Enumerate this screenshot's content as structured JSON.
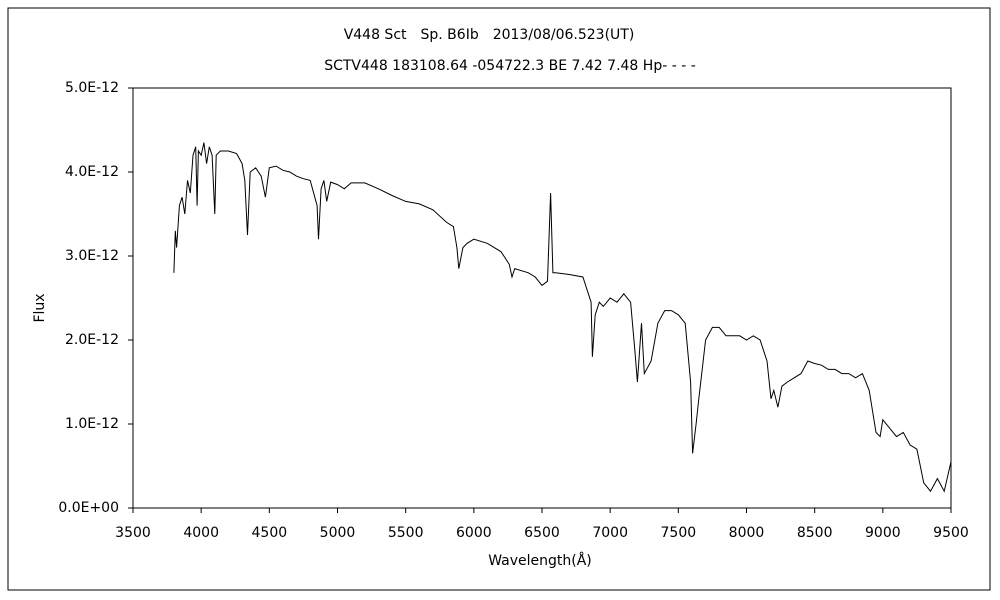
{
  "chart_data": {
    "type": "line",
    "title": "V448 Sct　Sp. B6Ib　2013/08/06.523(UT)",
    "subtitle": "SCTV448 183108.64 -054722.3 BE 7.42 7.48 Hp- - - -",
    "x_label": "Wavelength(Å)",
    "y_label": "Flux",
    "color": "#000000",
    "x": [
      3800,
      3810,
      3820,
      3840,
      3860,
      3880,
      3900,
      3920,
      3940,
      3960,
      3970,
      3980,
      4000,
      4020,
      4040,
      4060,
      4080,
      4100,
      4110,
      4140,
      4200,
      4260,
      4300,
      4320,
      4340,
      4360,
      4400,
      4440,
      4471,
      4500,
      4550,
      4600,
      4650,
      4700,
      4750,
      4800,
      4850,
      4861,
      4880,
      4900,
      4921,
      4950,
      5000,
      5050,
      5100,
      5200,
      5300,
      5400,
      5500,
      5600,
      5700,
      5800,
      5850,
      5876,
      5890,
      5920,
      5950,
      6000,
      6100,
      6200,
      6260,
      6280,
      6300,
      6400,
      6450,
      6500,
      6540,
      6563,
      6580,
      6600,
      6700,
      6800,
      6860,
      6870,
      6890,
      6920,
      6950,
      7000,
      7050,
      7100,
      7150,
      7180,
      7200,
      7230,
      7250,
      7300,
      7350,
      7400,
      7450,
      7500,
      7550,
      7590,
      7605,
      7630,
      7650,
      7700,
      7750,
      7800,
      7850,
      7900,
      7950,
      8000,
      8050,
      8100,
      8150,
      8180,
      8200,
      8230,
      8260,
      8300,
      8350,
      8400,
      8450,
      8500,
      8550,
      8600,
      8650,
      8700,
      8750,
      8800,
      8850,
      8900,
      8950,
      8980,
      9000,
      9050,
      9100,
      9150,
      9200,
      9250,
      9300,
      9350,
      9400,
      9450,
      9500
    ],
    "values": [
      2.8e-12,
      3.3e-12,
      3.1e-12,
      3.6e-12,
      3.7e-12,
      3.5e-12,
      3.9e-12,
      3.75e-12,
      4.2e-12,
      4.3e-12,
      3.6e-12,
      4.25e-12,
      4.2e-12,
      4.35e-12,
      4.1e-12,
      4.3e-12,
      4.2e-12,
      3.5e-12,
      4.2e-12,
      4.25e-12,
      4.25e-12,
      4.22e-12,
      4.1e-12,
      3.9e-12,
      3.25e-12,
      4e-12,
      4.05e-12,
      3.95e-12,
      3.7e-12,
      4.05e-12,
      4.07e-12,
      4.02e-12,
      4e-12,
      3.95e-12,
      3.92e-12,
      3.9e-12,
      3.6e-12,
      3.2e-12,
      3.8e-12,
      3.9e-12,
      3.65e-12,
      3.88e-12,
      3.85e-12,
      3.8e-12,
      3.87e-12,
      3.87e-12,
      3.8e-12,
      3.72e-12,
      3.65e-12,
      3.62e-12,
      3.55e-12,
      3.4e-12,
      3.35e-12,
      3.1e-12,
      2.85e-12,
      3.1e-12,
      3.15e-12,
      3.2e-12,
      3.15e-12,
      3.05e-12,
      2.9e-12,
      2.75e-12,
      2.85e-12,
      2.8e-12,
      2.75e-12,
      2.65e-12,
      2.7e-12,
      3.75e-12,
      2.8e-12,
      2.8e-12,
      2.78e-12,
      2.75e-12,
      2.45e-12,
      1.8e-12,
      2.3e-12,
      2.45e-12,
      2.4e-12,
      2.5e-12,
      2.45e-12,
      2.55e-12,
      2.45e-12,
      1.9e-12,
      1.5e-12,
      2.2e-12,
      1.6e-12,
      1.75e-12,
      2.2e-12,
      2.35e-12,
      2.35e-12,
      2.3e-12,
      2.2e-12,
      1.5e-12,
      6.5e-13,
      1e-12,
      1.3e-12,
      2e-12,
      2.15e-12,
      2.15e-12,
      2.05e-12,
      2.05e-12,
      2.05e-12,
      2e-12,
      2.05e-12,
      2e-12,
      1.75e-12,
      1.3e-12,
      1.4e-12,
      1.2e-12,
      1.45e-12,
      1.5e-12,
      1.55e-12,
      1.6e-12,
      1.75e-12,
      1.72e-12,
      1.7e-12,
      1.65e-12,
      1.65e-12,
      1.6e-12,
      1.6e-12,
      1.55e-12,
      1.6e-12,
      1.4e-12,
      9e-13,
      8.5e-13,
      1.05e-12,
      9.5e-13,
      8.5e-13,
      9e-13,
      7.5e-13,
      7e-13,
      3e-13,
      2e-13,
      3.5e-13,
      2e-13,
      5.5e-13
    ],
    "xlim": [
      3500,
      9500
    ],
    "xticks": [
      3500,
      4000,
      4500,
      5000,
      5500,
      6000,
      6500,
      7000,
      7500,
      8000,
      8500,
      9000,
      9500
    ],
    "ylim": [
      0,
      5e-12
    ],
    "yticks": [
      {
        "value": 0,
        "label": "0.0E+00"
      },
      {
        "value": 1e-12,
        "label": "1.0E-12"
      },
      {
        "value": 2e-12,
        "label": "2.0E-12"
      },
      {
        "value": 3e-12,
        "label": "3.0E-12"
      },
      {
        "value": 4e-12,
        "label": "4.0E-12"
      },
      {
        "value": 5e-12,
        "label": "5.0E-12"
      }
    ]
  }
}
